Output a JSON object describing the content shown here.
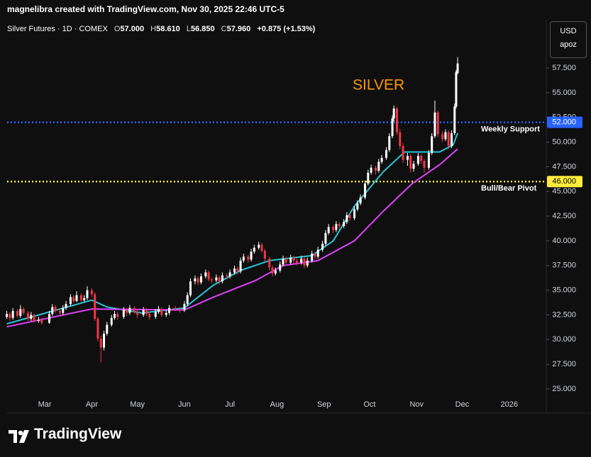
{
  "header": {
    "attribution": "magnelibra created with TradingView.com, Nov 30, 2025 22:46 UTC-5",
    "symbol": "Silver Futures · 1D · COMEX",
    "ohlc": [
      {
        "key": "O",
        "value": "57.000"
      },
      {
        "key": "H",
        "value": "58.610"
      },
      {
        "key": "L",
        "value": "56.850"
      },
      {
        "key": "C",
        "value": "57.960"
      }
    ],
    "change": "+0.875 (+1.53%)"
  },
  "toolbar": {
    "currency": "USD",
    "unit": "apoz"
  },
  "footer": {
    "brand": "TradingView"
  },
  "chart_data": {
    "type": "candlestick",
    "annotation": "SILVER",
    "up_color": "#ffffff",
    "down_color": "#f23645",
    "grid": false,
    "xlim": [
      35.2,
      390.4
    ],
    "ylim": [
      24.21,
      62.38
    ],
    "xticks": [
      {
        "value": 60,
        "label": "Mar"
      },
      {
        "value": 91,
        "label": "Apr"
      },
      {
        "value": 121,
        "label": "May"
      },
      {
        "value": 152,
        "label": "Jun"
      },
      {
        "value": 182,
        "label": "Jul"
      },
      {
        "value": 213,
        "label": "Aug"
      },
      {
        "value": 244,
        "label": "Sep"
      },
      {
        "value": 274,
        "label": "Oct"
      },
      {
        "value": 305,
        "label": "Nov"
      },
      {
        "value": 335,
        "label": "Dec"
      },
      {
        "value": 366,
        "label": "2026"
      }
    ],
    "yticks": [
      {
        "value": 25,
        "label": "25.000"
      },
      {
        "value": 27.5,
        "label": "27.500"
      },
      {
        "value": 30,
        "label": "30.000"
      },
      {
        "value": 32.5,
        "label": "32.500"
      },
      {
        "value": 35,
        "label": "35.000"
      },
      {
        "value": 37.5,
        "label": "37.500"
      },
      {
        "value": 40,
        "label": "40.000"
      },
      {
        "value": 42.5,
        "label": "42.500"
      },
      {
        "value": 45,
        "label": "45.000"
      },
      {
        "value": 47.5,
        "label": "47.500"
      },
      {
        "value": 50,
        "label": "50.000"
      },
      {
        "value": 52.5,
        "label": "52.500"
      },
      {
        "value": 55,
        "label": "55.000"
      },
      {
        "value": 57.5,
        "label": "57.500"
      }
    ],
    "levels": [
      {
        "value": 52,
        "label": "52.000",
        "text": "Weekly Support",
        "color": "#2962ff"
      },
      {
        "value": 46,
        "label": "46.000",
        "text": "Bull/Bear Pivot",
        "color": "#ffeb3b"
      }
    ],
    "moving_averages": [
      {
        "color": "#26c6da",
        "x": [
          35,
          91,
          101,
          124,
          152,
          171,
          189,
          208,
          236,
          250,
          264,
          283,
          297,
          320,
          329,
          332
        ],
        "values": [
          31.6,
          34.0,
          33.3,
          32.7,
          33.2,
          35.5,
          37.0,
          38.0,
          38.5,
          40.0,
          43.5,
          47.0,
          49.0,
          49.0,
          49.7,
          50.9
        ]
      },
      {
        "color": "#e040fb",
        "x": [
          35,
          91,
          152,
          171,
          199,
          217,
          240,
          264,
          283,
          302,
          320,
          332
        ],
        "values": [
          31.3,
          33.1,
          33.0,
          34.3,
          36.0,
          37.5,
          38.0,
          40.0,
          43.0,
          45.8,
          47.7,
          49.3
        ]
      }
    ],
    "candles": [
      [
        35,
        32.3,
        32.9,
        32.1,
        32.6
      ],
      [
        37,
        32.6,
        32.8,
        31.9,
        32.2
      ],
      [
        39,
        32.2,
        33.2,
        32.0,
        32.9
      ],
      [
        42,
        32.9,
        33.1,
        32.2,
        32.4
      ],
      [
        44,
        32.4,
        33.5,
        32.2,
        33.1
      ],
      [
        46,
        33.1,
        33.3,
        32.5,
        32.7
      ],
      [
        49,
        32.7,
        32.9,
        31.9,
        32.1
      ],
      [
        51,
        32.1,
        32.8,
        31.9,
        32.5
      ],
      [
        53,
        32.5,
        32.6,
        31.7,
        31.9
      ],
      [
        56,
        31.9,
        32.3,
        31.7,
        32.0
      ],
      [
        58,
        32.0,
        32.2,
        31.5,
        31.7
      ],
      [
        63,
        31.7,
        32.9,
        31.6,
        32.6
      ],
      [
        65,
        32.6,
        33.6,
        32.4,
        33.3
      ],
      [
        67,
        33.3,
        33.5,
        32.7,
        32.9
      ],
      [
        70,
        32.9,
        33.1,
        32.4,
        32.7
      ],
      [
        72,
        32.7,
        33.5,
        32.5,
        33.2
      ],
      [
        74,
        33.2,
        33.9,
        33.0,
        33.6
      ],
      [
        77,
        33.6,
        34.6,
        33.4,
        34.3
      ],
      [
        79,
        34.3,
        34.5,
        33.7,
        33.9
      ],
      [
        81,
        33.9,
        34.9,
        33.8,
        34.5
      ],
      [
        84,
        34.5,
        34.7,
        33.8,
        34.0
      ],
      [
        86,
        34.0,
        34.5,
        33.8,
        34.2
      ],
      [
        88,
        34.2,
        35.4,
        34.0,
        35.0
      ],
      [
        91,
        35.0,
        35.2,
        34.3,
        34.6
      ],
      [
        93,
        34.6,
        34.8,
        31.9,
        32.1
      ],
      [
        95,
        32.1,
        32.3,
        29.8,
        30.1
      ],
      [
        97,
        30.1,
        30.4,
        27.7,
        29.2
      ],
      [
        99,
        29.2,
        30.9,
        28.9,
        30.6
      ],
      [
        101,
        30.6,
        31.8,
        30.4,
        31.5
      ],
      [
        104,
        31.5,
        32.5,
        31.3,
        32.2
      ],
      [
        106,
        32.2,
        32.9,
        32.0,
        32.6
      ],
      [
        108,
        32.6,
        32.8,
        32.0,
        32.3
      ],
      [
        112,
        32.3,
        33.3,
        32.1,
        33.0
      ],
      [
        114,
        33.0,
        33.2,
        32.4,
        32.7
      ],
      [
        116,
        32.7,
        33.5,
        32.5,
        33.2
      ],
      [
        119,
        33.2,
        33.4,
        32.6,
        32.8
      ],
      [
        121,
        32.8,
        33.0,
        32.2,
        32.5
      ],
      [
        125,
        32.5,
        33.3,
        32.3,
        33.0
      ],
      [
        127,
        33.0,
        33.2,
        32.4,
        32.6
      ],
      [
        129,
        32.6,
        32.8,
        32.0,
        32.3
      ],
      [
        133,
        32.3,
        33.1,
        32.1,
        32.8
      ],
      [
        135,
        32.8,
        33.4,
        32.6,
        33.1
      ],
      [
        137,
        33.1,
        33.3,
        32.3,
        32.5
      ],
      [
        140,
        32.5,
        33.0,
        32.3,
        32.7
      ],
      [
        142,
        32.7,
        33.5,
        32.5,
        33.2
      ],
      [
        146,
        33.2,
        33.4,
        32.9,
        33.1
      ],
      [
        149,
        33.1,
        33.3,
        32.7,
        33.0
      ],
      [
        152,
        33.0,
        33.9,
        32.8,
        33.6
      ],
      [
        154,
        33.6,
        34.8,
        33.4,
        34.5
      ],
      [
        156,
        34.5,
        36.2,
        34.3,
        35.9
      ],
      [
        159,
        35.9,
        36.5,
        35.6,
        36.2
      ],
      [
        161,
        36.2,
        36.4,
        35.5,
        35.8
      ],
      [
        163,
        35.8,
        36.7,
        35.6,
        36.4
      ],
      [
        166,
        36.4,
        37.1,
        36.2,
        36.8
      ],
      [
        168,
        36.8,
        37.0,
        35.9,
        36.1
      ],
      [
        170,
        36.1,
        36.3,
        35.7,
        36.0
      ],
      [
        173,
        36.0,
        36.6,
        35.8,
        36.3
      ],
      [
        175,
        36.3,
        36.5,
        35.6,
        35.9
      ],
      [
        177,
        35.9,
        36.8,
        35.7,
        36.5
      ],
      [
        180,
        36.5,
        36.7,
        36.1,
        36.4
      ],
      [
        182,
        36.4,
        37.1,
        36.2,
        36.8
      ],
      [
        185,
        36.8,
        37.5,
        36.6,
        37.2
      ],
      [
        187,
        37.2,
        37.4,
        36.6,
        36.9
      ],
      [
        189,
        36.9,
        38.3,
        36.7,
        38.0
      ],
      [
        191,
        38.0,
        38.7,
        37.8,
        38.4
      ],
      [
        194,
        38.4,
        38.6,
        37.8,
        38.1
      ],
      [
        196,
        38.1,
        39.2,
        37.9,
        38.9
      ],
      [
        198,
        38.9,
        39.6,
        38.7,
        39.3
      ],
      [
        201,
        39.3,
        39.9,
        39.1,
        39.6
      ],
      [
        203,
        39.6,
        39.8,
        38.8,
        39.0
      ],
      [
        205,
        39.0,
        39.2,
        37.9,
        38.2
      ],
      [
        208,
        38.2,
        38.4,
        37.0,
        37.3
      ],
      [
        210,
        37.3,
        37.5,
        36.4,
        36.7
      ],
      [
        212,
        36.7,
        37.3,
        36.5,
        37.0
      ],
      [
        215,
        37.0,
        37.9,
        36.8,
        37.6
      ],
      [
        217,
        37.6,
        38.5,
        37.4,
        38.2
      ],
      [
        219,
        38.2,
        38.4,
        37.5,
        37.8
      ],
      [
        222,
        37.8,
        38.6,
        37.6,
        38.3
      ],
      [
        224,
        38.3,
        38.5,
        37.7,
        38.0
      ],
      [
        226,
        38.0,
        38.2,
        37.5,
        37.8
      ],
      [
        229,
        37.8,
        38.5,
        37.6,
        38.2
      ],
      [
        231,
        38.2,
        38.4,
        37.2,
        37.5
      ],
      [
        233,
        37.5,
        38.3,
        37.3,
        38.0
      ],
      [
        236,
        38.0,
        39.0,
        37.8,
        38.7
      ],
      [
        238,
        38.7,
        38.9,
        38.1,
        38.4
      ],
      [
        240,
        38.4,
        39.4,
        38.2,
        39.1
      ],
      [
        243,
        39.1,
        40.0,
        38.9,
        39.7
      ],
      [
        245,
        39.7,
        41.1,
        39.5,
        40.8
      ],
      [
        247,
        40.8,
        41.7,
        40.6,
        41.4
      ],
      [
        250,
        41.4,
        41.6,
        40.8,
        41.1
      ],
      [
        252,
        41.1,
        42.0,
        40.9,
        41.7
      ],
      [
        254,
        41.7,
        41.9,
        41.2,
        41.5
      ],
      [
        257,
        41.5,
        42.2,
        41.3,
        41.9
      ],
      [
        259,
        41.9,
        42.9,
        41.7,
        42.6
      ],
      [
        261,
        42.6,
        42.8,
        42.0,
        42.3
      ],
      [
        264,
        42.3,
        43.5,
        42.1,
        43.2
      ],
      [
        266,
        43.2,
        44.1,
        43.0,
        43.8
      ],
      [
        268,
        43.8,
        44.7,
        43.6,
        44.4
      ],
      [
        271,
        44.4,
        46.1,
        44.2,
        45.8
      ],
      [
        273,
        45.8,
        47.2,
        45.6,
        46.9
      ],
      [
        275,
        46.9,
        47.7,
        46.7,
        47.4
      ],
      [
        278,
        47.4,
        47.6,
        46.7,
        47.1
      ],
      [
        280,
        47.1,
        48.3,
        46.9,
        48.0
      ],
      [
        282,
        48.0,
        48.7,
        47.8,
        48.4
      ],
      [
        285,
        48.4,
        49.5,
        48.2,
        49.2
      ],
      [
        287,
        49.2,
        50.9,
        49.0,
        50.6
      ],
      [
        289,
        50.6,
        52.7,
        50.4,
        52.4
      ],
      [
        290,
        52.4,
        53.7,
        52.1,
        53.4
      ],
      [
        292,
        53.4,
        53.6,
        50.7,
        51.0
      ],
      [
        294,
        51.0,
        51.3,
        49.3,
        49.6
      ],
      [
        296,
        49.6,
        49.9,
        47.9,
        48.2
      ],
      [
        299,
        48.2,
        48.9,
        47.6,
        48.6
      ],
      [
        301,
        48.6,
        48.8,
        46.9,
        47.3
      ],
      [
        303,
        47.3,
        48.1,
        47.0,
        47.8
      ],
      [
        306,
        47.8,
        48.9,
        47.6,
        48.6
      ],
      [
        308,
        48.6,
        48.8,
        47.8,
        48.1
      ],
      [
        310,
        48.1,
        48.3,
        46.9,
        47.4
      ],
      [
        313,
        47.4,
        49.2,
        47.2,
        48.9
      ],
      [
        315,
        48.9,
        50.9,
        48.7,
        50.6
      ],
      [
        317,
        50.6,
        54.2,
        50.4,
        53.0
      ],
      [
        319,
        53.0,
        53.2,
        50.5,
        50.8
      ],
      [
        322,
        50.8,
        51.1,
        50.0,
        50.3
      ],
      [
        324,
        50.3,
        51.3,
        50.1,
        51.0
      ],
      [
        326,
        51.0,
        51.2,
        49.3,
        49.6
      ],
      [
        328,
        49.6,
        51.2,
        49.4,
        50.9
      ],
      [
        330,
        50.9,
        53.9,
        50.7,
        53.6
      ],
      [
        331,
        53.6,
        57.3,
        53.4,
        57.085
      ],
      [
        332,
        57.0,
        58.61,
        56.85,
        57.96
      ]
    ]
  }
}
